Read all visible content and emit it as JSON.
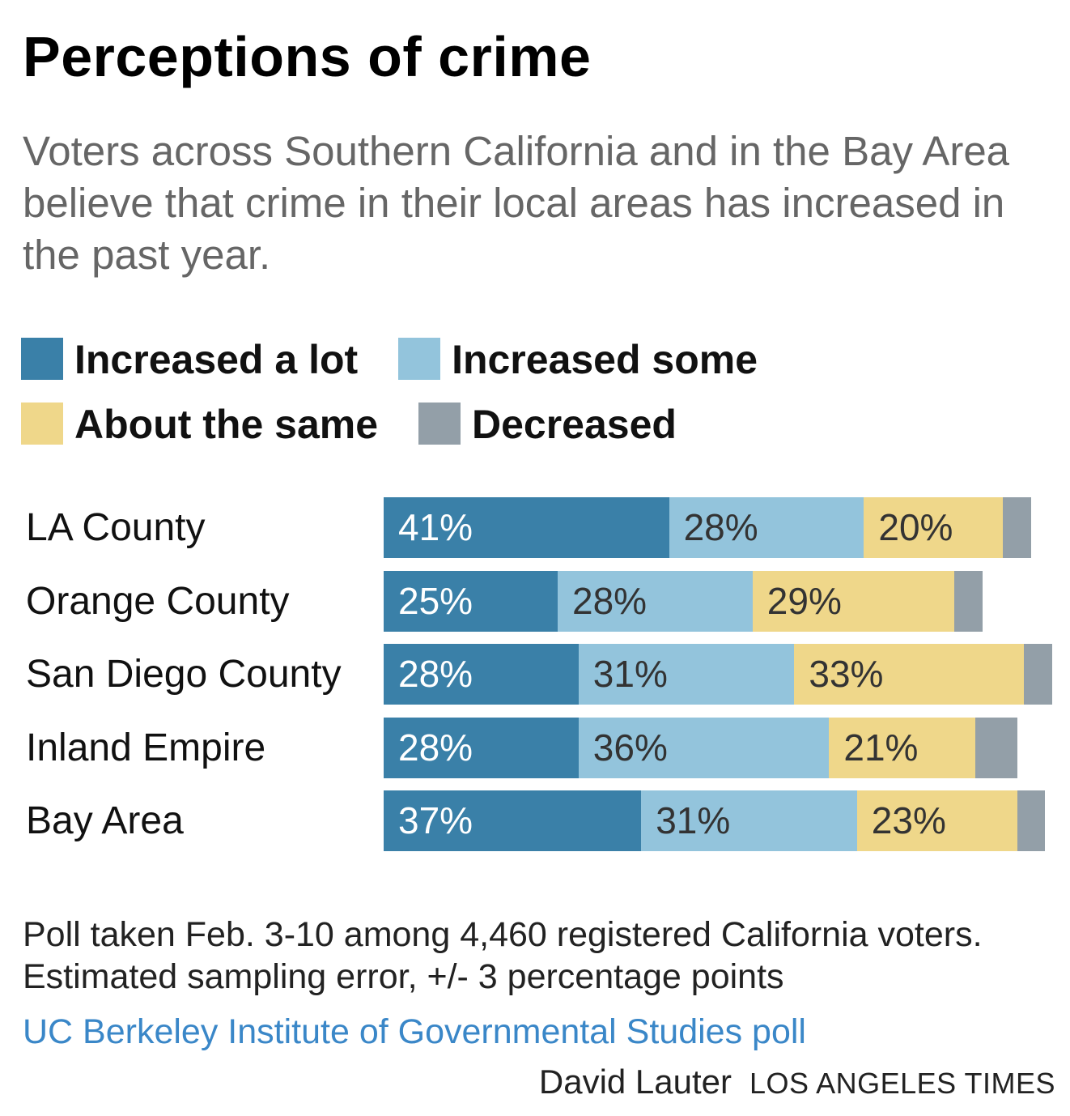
{
  "title": "Perceptions of crime",
  "subtitle": "Voters across Southern California and in the Bay Area believe that crime in their local areas has increased in the past year.",
  "legend": [
    {
      "label": "Increased a lot",
      "color": "#3a80a8"
    },
    {
      "label": "Increased some",
      "color": "#93c4dc"
    },
    {
      "label": "About the same",
      "color": "#efd78a"
    },
    {
      "label": "Decreased",
      "color": "#939fa8"
    }
  ],
  "chart_data": {
    "type": "bar",
    "orientation": "horizontal",
    "stacked": true,
    "categories": [
      "LA County",
      "Orange County",
      "San Diego County",
      "Inland Empire",
      "Bay Area"
    ],
    "series": [
      {
        "name": "Increased a lot",
        "color": "#3a80a8",
        "values": [
          41,
          25,
          28,
          28,
          37
        ],
        "labels": [
          "41%",
          "25%",
          "28%",
          "28%",
          "37%"
        ]
      },
      {
        "name": "Increased some",
        "color": "#93c4dc",
        "values": [
          28,
          28,
          31,
          36,
          31
        ],
        "labels": [
          "28%",
          "28%",
          "31%",
          "36%",
          "31%"
        ]
      },
      {
        "name": "About the same",
        "color": "#efd78a",
        "values": [
          20,
          29,
          33,
          21,
          23
        ],
        "labels": [
          "20%",
          "29%",
          "33%",
          "21%",
          "23%"
        ]
      },
      {
        "name": "Decreased",
        "color": "#939fa8",
        "values": [
          4,
          4,
          4,
          6,
          4
        ],
        "labels": [
          "",
          "",
          "",
          "",
          ""
        ]
      }
    ],
    "unit": "%",
    "grid": false,
    "legend_position": "top"
  },
  "note": [
    "Poll taken Feb. 3-10 among 4,460 registered California voters.",
    "Estimated sampling error, +/- 3 percentage points"
  ],
  "source": "UC Berkeley Institute of Governmental Studies poll",
  "credit": {
    "author": "David Lauter",
    "org": "LOS ANGELES TIMES"
  }
}
